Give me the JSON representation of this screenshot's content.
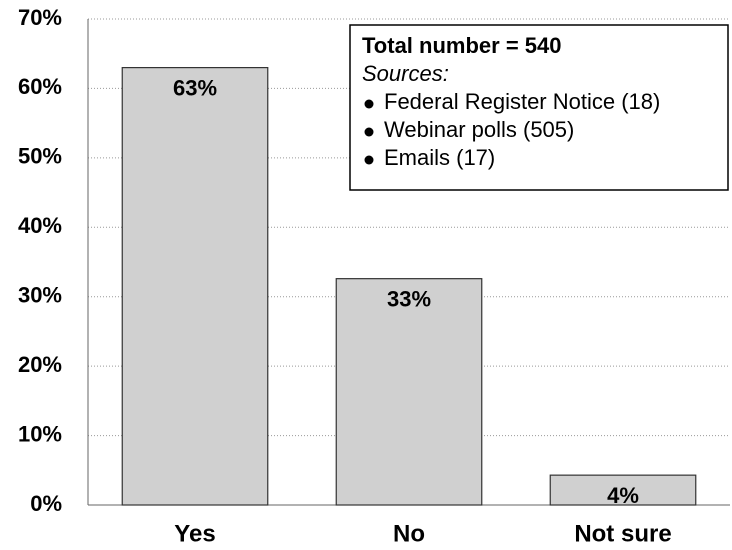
{
  "chart_data": {
    "type": "bar",
    "categories": [
      "Yes",
      "No",
      "Not sure"
    ],
    "values": [
      63,
      32.6,
      4.3
    ],
    "value_labels": [
      "63%",
      "33%",
      "4%"
    ],
    "color": "#d0d0d0",
    "ylim": [
      0,
      70
    ],
    "yticks": [
      {
        "value": 0,
        "label": "0%"
      },
      {
        "value": 10,
        "label": "10%"
      },
      {
        "value": 20,
        "label": "20%"
      },
      {
        "value": 30,
        "label": "30%"
      },
      {
        "value": 40,
        "label": "40%"
      },
      {
        "value": 50,
        "label": "50%"
      },
      {
        "value": 60,
        "label": "60%"
      },
      {
        "value": 70,
        "label": "70%"
      }
    ],
    "grid": true,
    "annotation": {
      "title": "Total number = 540",
      "subtitle": "Sources:",
      "items": [
        "Federal Register Notice (18)",
        "Webinar polls (505)",
        "Emails (17)"
      ]
    }
  }
}
